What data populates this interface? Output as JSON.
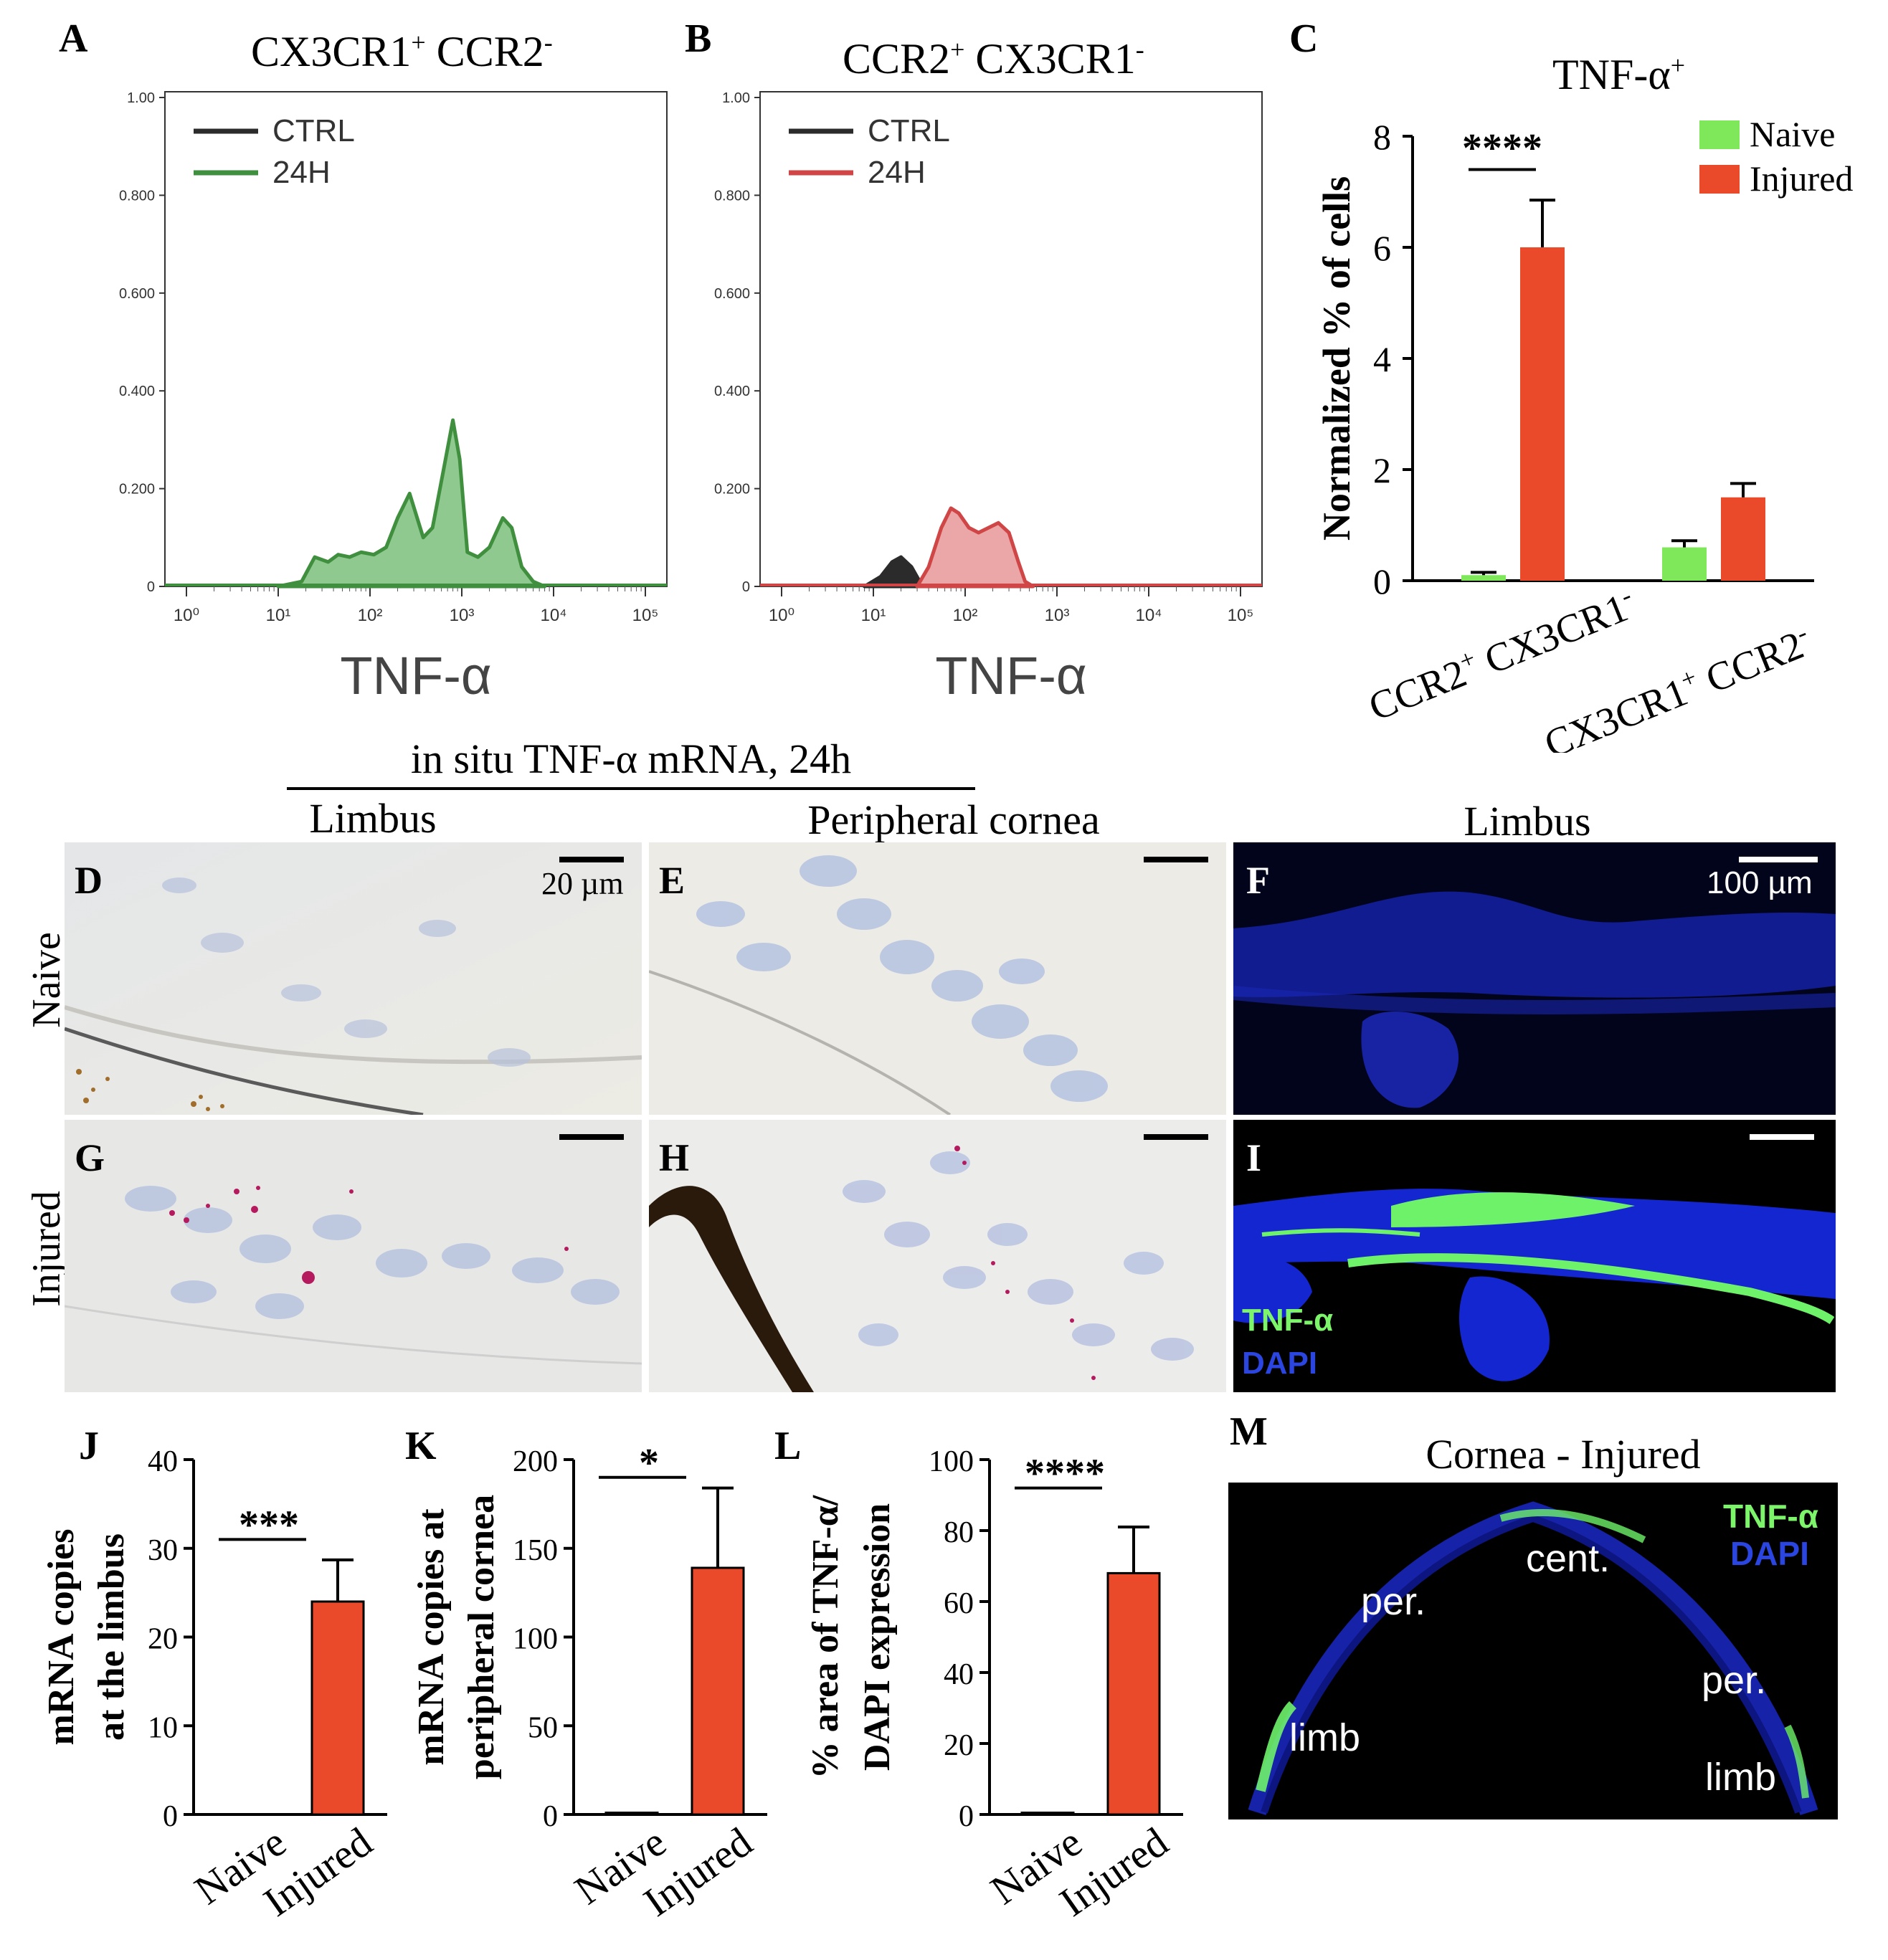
{
  "colors": {
    "ctrl": "#2b2b2b",
    "green_24h": "#3f8f3f",
    "green_fill": "#8fc98f",
    "red_24h": "#d04545",
    "red_fill": "#eba7a7",
    "naive": "#7fe85a",
    "injured": "#ea4a2a",
    "brightfield": "#e9e6de",
    "nucleus_blue": "#a9b8da",
    "dapi_blue": "#1c2ad0",
    "tnf_green": "#7cf56a",
    "black": "#000000"
  },
  "panel_A": {
    "letter": "A",
    "title_main": "CX3CR1",
    "title_sup1": "+",
    "title_mid": " CCR2",
    "title_sup2": "-",
    "legend": [
      "CTRL",
      "24H"
    ],
    "xlabel": "TNF-α",
    "y_ticks": [
      "1.00",
      "0.800",
      "0.600",
      "0.400",
      "0.200",
      "0"
    ],
    "x_ticks": [
      "10⁰",
      "10¹",
      "10²",
      "10³",
      "10⁴",
      "10⁵"
    ]
  },
  "panel_B": {
    "letter": "B",
    "title_main": "CCR2",
    "title_sup1": "+",
    "title_mid": " CX3CR1",
    "title_sup2": "-",
    "legend": [
      "CTRL",
      "24H"
    ],
    "xlabel": "TNF-α",
    "y_ticks": [
      "1.00",
      "0.800",
      "0.600",
      "0.400",
      "0.200",
      "0"
    ],
    "x_ticks": [
      "10⁰",
      "10¹",
      "10²",
      "10³",
      "10⁴",
      "10⁵"
    ]
  },
  "panel_C": {
    "letter": "C",
    "title": "TNF-α",
    "title_sup": "+",
    "ylabel": "Normalized % of cells",
    "sig": "****",
    "legend": [
      "Naive",
      "Injured"
    ],
    "cat1_main": "CCR2",
    "cat1_sup1": "+",
    "cat1_rest": " CX3CR1",
    "cat1_sup2": "-",
    "cat2_main": "CX3CR1",
    "cat2_sup1": "+",
    "cat2_rest": " CCR2",
    "cat2_sup2": "-"
  },
  "header": {
    "in_situ": "in situ TNF-α mRNA, 24h",
    "limbus": "Limbus",
    "peripheral": "Peripheral cornea",
    "limbus_f": "Limbus"
  },
  "rows": {
    "naive": "Naive",
    "injured": "Injured"
  },
  "micro": {
    "D": "D",
    "E": "E",
    "F": "F",
    "G": "G",
    "H": "H",
    "I": "I",
    "scale_20": "20 µm",
    "scale_100": "100 µm",
    "tnf": "TNF-α",
    "dapi": "DAPI"
  },
  "panel_J": {
    "letter": "J",
    "ylabel_1": "mRNA copies",
    "ylabel_2": "at the limbus",
    "sig": "***"
  },
  "panel_K": {
    "letter": "K",
    "ylabel_1": "mRNA copies at",
    "ylabel_2": "peripheral cornea",
    "sig": "*"
  },
  "panel_L": {
    "letter": "L",
    "ylabel_1": "% area of TNF-α/",
    "ylabel_2": "DAPI expression",
    "sig": "****"
  },
  "panel_M": {
    "letter": "M",
    "title": "Cornea - Injured",
    "tnf": "TNF-α",
    "dapi": "DAPI",
    "cent": "cent.",
    "per_left": "per.",
    "per_right": "per.",
    "limb_left": "limb",
    "limb_right": "limb"
  },
  "chart_data": [
    {
      "id": "A",
      "type": "area",
      "title": "CX3CR1+ CCR2-",
      "xlabel": "TNF-α",
      "x_scale": "log",
      "xlim": [
        1,
        100000
      ],
      "ylim": [
        0,
        1.0
      ],
      "series": [
        {
          "name": "CTRL",
          "x": [],
          "y": []
        },
        {
          "name": "24H",
          "x": [
            10,
            18,
            25,
            35,
            45,
            60,
            80,
            110,
            150,
            200,
            270,
            380,
            480,
            650,
            800,
            950,
            1150,
            1500,
            2000,
            2800,
            3500,
            4500,
            6000,
            8000
          ],
          "y": [
            0,
            0.01,
            0.06,
            0.05,
            0.065,
            0.06,
            0.07,
            0.065,
            0.08,
            0.14,
            0.19,
            0.1,
            0.12,
            0.25,
            0.34,
            0.26,
            0.07,
            0.06,
            0.08,
            0.14,
            0.12,
            0.04,
            0.01,
            0
          ]
        }
      ]
    },
    {
      "id": "B",
      "type": "area",
      "title": "CCR2+ CX3CR1-",
      "xlabel": "TNF-α",
      "x_scale": "log",
      "xlim": [
        1,
        100000
      ],
      "ylim": [
        0,
        1.0
      ],
      "series": [
        {
          "name": "CTRL",
          "x": [
            8,
            12,
            16,
            20,
            26,
            32,
            40,
            55,
            70,
            85,
            100,
            120
          ],
          "y": [
            0,
            0.02,
            0.05,
            0.06,
            0.04,
            0.01,
            0,
            0.03,
            0.055,
            0.05,
            0.02,
            0
          ]
        },
        {
          "name": "24H",
          "x": [
            30,
            40,
            55,
            70,
            85,
            110,
            140,
            180,
            230,
            300,
            380,
            450,
            550
          ],
          "y": [
            0,
            0.04,
            0.12,
            0.16,
            0.15,
            0.12,
            0.11,
            0.12,
            0.13,
            0.11,
            0.05,
            0.01,
            0
          ]
        }
      ]
    },
    {
      "id": "C",
      "type": "bar",
      "title": "TNF-α+",
      "ylabel": "Normalized % of cells",
      "ylim": [
        0,
        8
      ],
      "y_ticks": [
        0,
        2,
        4,
        6,
        8
      ],
      "categories": [
        "CCR2+ CX3CR1-",
        "CX3CR1+ CCR2-"
      ],
      "series": [
        {
          "name": "Naive",
          "values": [
            0.1,
            0.6
          ],
          "errors": [
            0.05,
            0.12
          ]
        },
        {
          "name": "Injured",
          "values": [
            6.0,
            1.5
          ],
          "errors": [
            0.85,
            0.25
          ]
        }
      ],
      "significance": [
        {
          "category": "CCR2+ CX3CR1-",
          "label": "****"
        }
      ]
    },
    {
      "id": "J",
      "type": "bar",
      "ylabel": "mRNA copies at the limbus",
      "ylim": [
        0,
        40
      ],
      "y_ticks": [
        0,
        10,
        20,
        30,
        40
      ],
      "categories": [
        "Naive",
        "Injured"
      ],
      "values": [
        0,
        24
      ],
      "errors": [
        0,
        4.7
      ],
      "significance": "***"
    },
    {
      "id": "K",
      "type": "bar",
      "ylabel": "mRNA copies at peripheral cornea",
      "ylim": [
        0,
        200
      ],
      "y_ticks": [
        0,
        50,
        100,
        150,
        200
      ],
      "categories": [
        "Naive",
        "Injured"
      ],
      "values": [
        1,
        139
      ],
      "errors": [
        0,
        45
      ],
      "significance": "*"
    },
    {
      "id": "L",
      "type": "bar",
      "ylabel": "% area of TNF-α/ DAPI expression",
      "ylim": [
        0,
        100
      ],
      "y_ticks": [
        0,
        20,
        40,
        60,
        80,
        100
      ],
      "categories": [
        "Naive",
        "Injured"
      ],
      "values": [
        0.5,
        68
      ],
      "errors": [
        0,
        13
      ],
      "significance": "****"
    }
  ]
}
